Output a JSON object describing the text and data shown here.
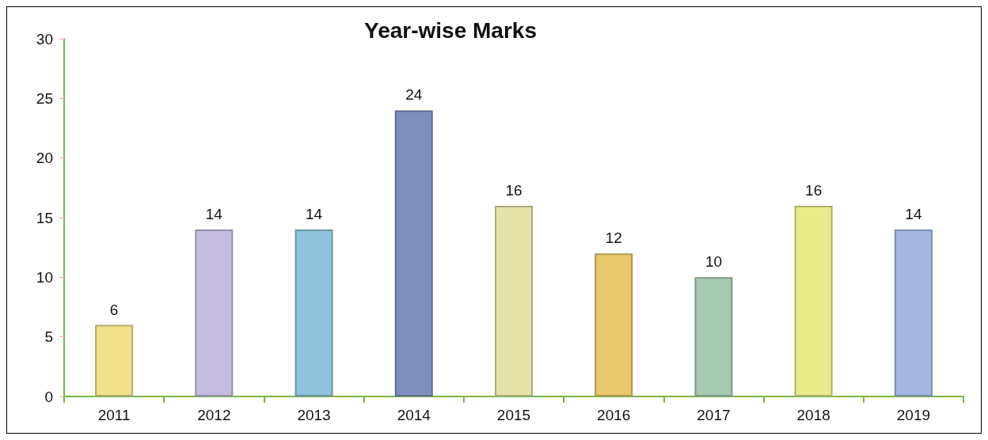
{
  "chart_data": {
    "type": "bar",
    "title": "Year-wise Marks",
    "categories": [
      "2011",
      "2012",
      "2013",
      "2014",
      "2015",
      "2016",
      "2017",
      "2018",
      "2019"
    ],
    "values": [
      6,
      14,
      14,
      24,
      16,
      12,
      10,
      16,
      14
    ],
    "colors": [
      "#f2e08a",
      "#c5bde0",
      "#8fc3dc",
      "#7f8fbd",
      "#e3e3a8",
      "#e8c86a",
      "#a6cab0",
      "#e6ec8a",
      "#a3b8e3"
    ],
    "ylim": [
      0,
      30
    ],
    "yticks": [
      0,
      5,
      10,
      15,
      20,
      25,
      30
    ],
    "grid": false,
    "data_labels": true
  }
}
